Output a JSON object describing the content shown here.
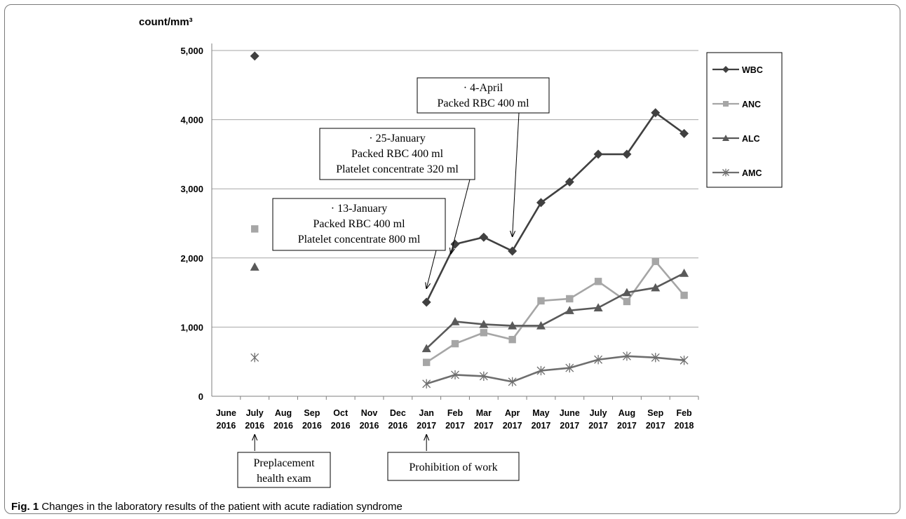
{
  "chart_data": {
    "type": "line",
    "ylabel": "count/mm³",
    "ylim": [
      0,
      5000
    ],
    "yticks": [
      0,
      1000,
      2000,
      3000,
      4000,
      5000
    ],
    "ytick_labels": [
      "0",
      "1,000",
      "2,000",
      "3,000",
      "4,000",
      "5,000"
    ],
    "grid": true,
    "legend_position": "right",
    "categories": [
      [
        "June",
        "2016"
      ],
      [
        "July",
        "2016"
      ],
      [
        "Aug",
        "2016"
      ],
      [
        "Sep",
        "2016"
      ],
      [
        "Oct",
        "2016"
      ],
      [
        "Nov",
        "2016"
      ],
      [
        "Dec",
        "2016"
      ],
      [
        "Jan",
        "2017"
      ],
      [
        "Feb",
        "2017"
      ],
      [
        "Mar",
        "2017"
      ],
      [
        "Apr",
        "2017"
      ],
      [
        "May",
        "2017"
      ],
      [
        "June",
        "2017"
      ],
      [
        "July",
        "2017"
      ],
      [
        "Aug",
        "2017"
      ],
      [
        "Sep",
        "2017"
      ],
      [
        "Feb",
        "2018"
      ]
    ],
    "series": [
      {
        "name": "WBC",
        "color": "#404040",
        "marker": "diamond",
        "values": [
          null,
          4920,
          null,
          null,
          null,
          null,
          null,
          1360,
          2200,
          2300,
          2100,
          2800,
          3100,
          3500,
          3500,
          4100,
          3800
        ]
      },
      {
        "name": "ANC",
        "color": "#a6a6a6",
        "marker": "square",
        "values": [
          null,
          2420,
          null,
          null,
          null,
          null,
          null,
          490,
          760,
          920,
          820,
          1380,
          1410,
          1660,
          1370,
          1950,
          1460
        ]
      },
      {
        "name": "ALC",
        "color": "#595959",
        "marker": "triangle",
        "values": [
          null,
          1870,
          null,
          null,
          null,
          null,
          null,
          690,
          1080,
          1040,
          1020,
          1020,
          1240,
          1280,
          1500,
          1570,
          1780
        ]
      },
      {
        "name": "AMC",
        "color": "#6e6e6e",
        "marker": "star",
        "values": [
          null,
          560,
          null,
          null,
          null,
          null,
          null,
          180,
          310,
          290,
          210,
          370,
          410,
          530,
          580,
          560,
          520
        ]
      }
    ],
    "annotations": [
      {
        "lines": [
          "· 4-April",
          "Packed RBC 400 ml"
        ],
        "target_index": 10,
        "target_value": 2250
      },
      {
        "lines": [
          "· 25-January",
          "Packed RBC 400 ml",
          "Platelet concentrate 320 ml"
        ],
        "target_index": 7.85,
        "target_value": 2000
      },
      {
        "lines": [
          "· 13-January",
          "Packed RBC 400 ml",
          "Platelet concentrate 800 ml"
        ],
        "target_index": 7,
        "target_value": 1500
      }
    ],
    "below_axis_notes": [
      {
        "lines": [
          "Preplacement",
          "health exam"
        ],
        "target_index": 1
      },
      {
        "lines": [
          "Prohibition of work"
        ],
        "target_index": 7
      }
    ]
  },
  "caption": {
    "label": "Fig. 1",
    "text": " Changes in the laboratory results of the patient with acute radiation syndrome"
  }
}
